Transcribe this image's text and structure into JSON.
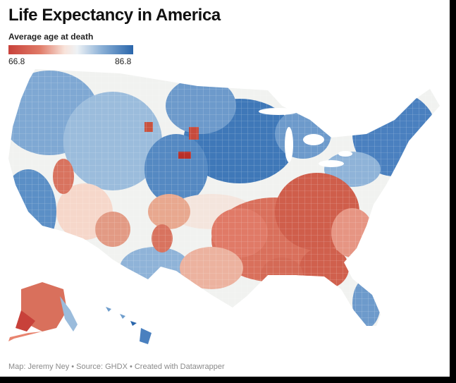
{
  "title": "Life Expectancy in America",
  "legend": {
    "title": "Average age at death",
    "min_label": "66.8",
    "max_label": "86.8",
    "min_value": 66.8,
    "max_value": 86.8,
    "colors": [
      "#c8413a",
      "#e8846f",
      "#f7d8cc",
      "#f2f2ee",
      "#c5d8ea",
      "#6e9dcc",
      "#2a66ab"
    ]
  },
  "map": {
    "subject": "County-level choropleth of the United States: lower life expectancy (red) concentrated in the South and Appalachia; higher (blue) in the Upper Midwest, Northeast, Colorado and West Coast"
  },
  "footer": "Map: Jeremy Ney • Source: GHDX • Created with Datawrapper"
}
